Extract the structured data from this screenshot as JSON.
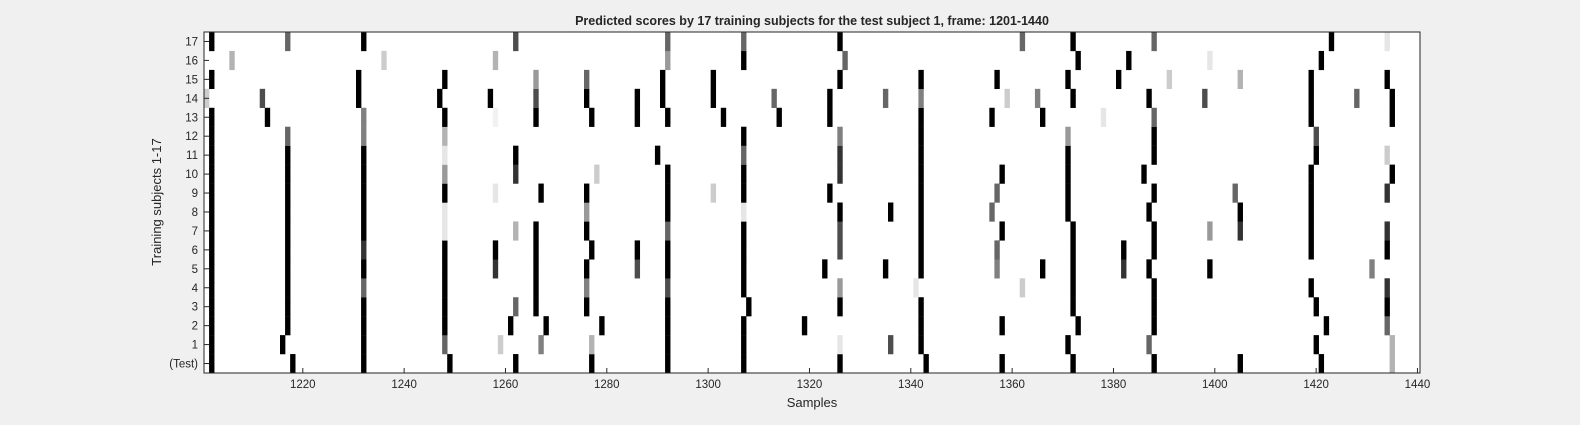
{
  "chart_data": {
    "type": "heatmap",
    "title": "Predicted scores by 17 training subjects for the test subject 1, frame: 1201-1440",
    "xlabel": "Samples",
    "ylabel": "Training subjects 1-17",
    "xlim": [
      1201,
      1440
    ],
    "x_ticks": [
      1220,
      1240,
      1260,
      1280,
      1300,
      1320,
      1340,
      1360,
      1380,
      1400,
      1420,
      1440
    ],
    "rows": [
      "(Test)",
      "1",
      "2",
      "3",
      "4",
      "5",
      "6",
      "7",
      "8",
      "9",
      "10",
      "11",
      "12",
      "13",
      "14",
      "15",
      "16",
      "17"
    ],
    "colormap": "white-to-black",
    "marks": {
      "(Test)": [
        [
          1202,
          1
        ],
        [
          1218,
          1
        ],
        [
          1232,
          1
        ],
        [
          1249,
          1
        ],
        [
          1262,
          1
        ],
        [
          1277,
          1
        ],
        [
          1292,
          1
        ],
        [
          1307,
          1
        ],
        [
          1326,
          1
        ],
        [
          1343,
          1
        ],
        [
          1358,
          1
        ],
        [
          1372,
          1
        ],
        [
          1388,
          1
        ],
        [
          1405,
          1
        ],
        [
          1421,
          1
        ],
        [
          1435,
          0.3
        ]
      ],
      "1": [
        [
          1202,
          1
        ],
        [
          1216,
          1
        ],
        [
          1232,
          1
        ],
        [
          1248,
          0.6
        ],
        [
          1259,
          0.2
        ],
        [
          1267,
          0.5
        ],
        [
          1277,
          0.3
        ],
        [
          1292,
          1
        ],
        [
          1307,
          1
        ],
        [
          1326,
          0.1
        ],
        [
          1336,
          0.7
        ],
        [
          1342,
          1
        ],
        [
          1371,
          1
        ],
        [
          1387,
          0.6
        ],
        [
          1420,
          1
        ],
        [
          1435,
          0.3
        ]
      ],
      "2": [
        [
          1202,
          1
        ],
        [
          1217,
          1
        ],
        [
          1232,
          1
        ],
        [
          1248,
          1
        ],
        [
          1261,
          1
        ],
        [
          1268,
          1
        ],
        [
          1279,
          1
        ],
        [
          1292,
          1
        ],
        [
          1307,
          1
        ],
        [
          1319,
          1
        ],
        [
          1342,
          1
        ],
        [
          1358,
          1
        ],
        [
          1373,
          1
        ],
        [
          1388,
          1
        ],
        [
          1422,
          1
        ],
        [
          1434,
          0.6
        ]
      ],
      "3": [
        [
          1202,
          1
        ],
        [
          1217,
          1
        ],
        [
          1232,
          1
        ],
        [
          1248,
          1
        ],
        [
          1262,
          0.6
        ],
        [
          1266,
          1
        ],
        [
          1276,
          1
        ],
        [
          1292,
          1
        ],
        [
          1308,
          1
        ],
        [
          1326,
          1
        ],
        [
          1342,
          1
        ],
        [
          1372,
          1
        ],
        [
          1388,
          1
        ],
        [
          1420,
          1
        ],
        [
          1434,
          1
        ]
      ],
      "4": [
        [
          1202,
          1
        ],
        [
          1217,
          1
        ],
        [
          1232,
          0.6
        ],
        [
          1248,
          1
        ],
        [
          1266,
          1
        ],
        [
          1276,
          0.5
        ],
        [
          1292,
          0.7
        ],
        [
          1307,
          1
        ],
        [
          1326,
          0.4
        ],
        [
          1341,
          0.1
        ],
        [
          1362,
          0.2
        ],
        [
          1372,
          1
        ],
        [
          1388,
          1
        ],
        [
          1419,
          1
        ],
        [
          1434,
          0.8
        ]
      ],
      "5": [
        [
          1202,
          1
        ],
        [
          1217,
          1
        ],
        [
          1232,
          1
        ],
        [
          1248,
          1
        ],
        [
          1258,
          0.8
        ],
        [
          1266,
          1
        ],
        [
          1276,
          1
        ],
        [
          1286,
          0.7
        ],
        [
          1292,
          1
        ],
        [
          1307,
          1
        ],
        [
          1323,
          1
        ],
        [
          1335,
          1
        ],
        [
          1342,
          1
        ],
        [
          1357,
          0.5
        ],
        [
          1366,
          1
        ],
        [
          1372,
          1
        ],
        [
          1382,
          0.8
        ],
        [
          1387,
          1
        ],
        [
          1399,
          1
        ],
        [
          1431,
          0.5
        ]
      ],
      "6": [
        [
          1202,
          1
        ],
        [
          1217,
          1
        ],
        [
          1232,
          0.8
        ],
        [
          1248,
          1
        ],
        [
          1258,
          1
        ],
        [
          1266,
          1
        ],
        [
          1277,
          1
        ],
        [
          1286,
          1
        ],
        [
          1292,
          1
        ],
        [
          1307,
          1
        ],
        [
          1326,
          0.7
        ],
        [
          1342,
          1
        ],
        [
          1357,
          0.6
        ],
        [
          1372,
          1
        ],
        [
          1382,
          1
        ],
        [
          1388,
          1
        ],
        [
          1419,
          1
        ],
        [
          1434,
          1
        ]
      ],
      "7": [
        [
          1202,
          1
        ],
        [
          1217,
          1
        ],
        [
          1232,
          1
        ],
        [
          1248,
          0.1
        ],
        [
          1262,
          0.3
        ],
        [
          1266,
          1
        ],
        [
          1276,
          1
        ],
        [
          1292,
          0.6
        ],
        [
          1307,
          1
        ],
        [
          1326,
          0.7
        ],
        [
          1342,
          1
        ],
        [
          1358,
          1
        ],
        [
          1372,
          1
        ],
        [
          1388,
          1
        ],
        [
          1399,
          0.4
        ],
        [
          1405,
          0.8
        ],
        [
          1419,
          1
        ],
        [
          1434,
          0.8
        ]
      ],
      "8": [
        [
          1202,
          1
        ],
        [
          1217,
          1
        ],
        [
          1232,
          1
        ],
        [
          1248,
          0.1
        ],
        [
          1276,
          0.4
        ],
        [
          1292,
          1
        ],
        [
          1307,
          0.1
        ],
        [
          1326,
          1
        ],
        [
          1336,
          1
        ],
        [
          1342,
          1
        ],
        [
          1356,
          0.6
        ],
        [
          1371,
          1
        ],
        [
          1387,
          1
        ],
        [
          1405,
          1
        ],
        [
          1419,
          1
        ]
      ],
      "9": [
        [
          1202,
          1
        ],
        [
          1217,
          1
        ],
        [
          1232,
          1
        ],
        [
          1248,
          1
        ],
        [
          1258,
          0.1
        ],
        [
          1267,
          1
        ],
        [
          1276,
          1
        ],
        [
          1292,
          1
        ],
        [
          1301,
          0.2
        ],
        [
          1307,
          1
        ],
        [
          1324,
          1
        ],
        [
          1342,
          1
        ],
        [
          1357,
          0.6
        ],
        [
          1371,
          1
        ],
        [
          1388,
          1
        ],
        [
          1404,
          0.6
        ],
        [
          1419,
          1
        ],
        [
          1434,
          0.8
        ]
      ],
      "10": [
        [
          1202,
          1
        ],
        [
          1217,
          1
        ],
        [
          1232,
          1
        ],
        [
          1248,
          0.4
        ],
        [
          1262,
          0.8
        ],
        [
          1278,
          0.2
        ],
        [
          1292,
          1
        ],
        [
          1307,
          1
        ],
        [
          1326,
          0.8
        ],
        [
          1342,
          1
        ],
        [
          1358,
          1
        ],
        [
          1371,
          1
        ],
        [
          1386,
          1
        ],
        [
          1419,
          1
        ],
        [
          1435,
          1
        ]
      ],
      "11": [
        [
          1202,
          1
        ],
        [
          1217,
          1
        ],
        [
          1232,
          1
        ],
        [
          1248,
          0.1
        ],
        [
          1262,
          1
        ],
        [
          1290,
          1
        ],
        [
          1307,
          0.6
        ],
        [
          1326,
          0.8
        ],
        [
          1342,
          1
        ],
        [
          1371,
          1
        ],
        [
          1388,
          1
        ],
        [
          1420,
          1
        ],
        [
          1434,
          0.2
        ]
      ],
      "12": [
        [
          1202,
          1
        ],
        [
          1217,
          0.6
        ],
        [
          1232,
          0.5
        ],
        [
          1248,
          0.3
        ],
        [
          1307,
          1
        ],
        [
          1326,
          0.5
        ],
        [
          1342,
          1
        ],
        [
          1371,
          0.4
        ],
        [
          1388,
          1
        ],
        [
          1420,
          0.7
        ]
      ],
      "13": [
        [
          1202,
          1
        ],
        [
          1213,
          1
        ],
        [
          1232,
          0.5
        ],
        [
          1248,
          1
        ],
        [
          1258,
          0.05
        ],
        [
          1266,
          1
        ],
        [
          1277,
          1
        ],
        [
          1286,
          1
        ],
        [
          1292,
          1
        ],
        [
          1303,
          1
        ],
        [
          1314,
          1
        ],
        [
          1324,
          1
        ],
        [
          1342,
          1
        ],
        [
          1356,
          1
        ],
        [
          1366,
          1
        ],
        [
          1378,
          0.1
        ],
        [
          1388,
          0.6
        ],
        [
          1419,
          1
        ],
        [
          1435,
          1
        ]
      ],
      "14": [
        [
          1201,
          0.2
        ],
        [
          1212,
          0.7
        ],
        [
          1231,
          1
        ],
        [
          1247,
          1
        ],
        [
          1257,
          1
        ],
        [
          1266,
          0.7
        ],
        [
          1276,
          1
        ],
        [
          1286,
          1
        ],
        [
          1291,
          1
        ],
        [
          1301,
          1
        ],
        [
          1313,
          0.6
        ],
        [
          1324,
          1
        ],
        [
          1335,
          0.6
        ],
        [
          1342,
          0.5
        ],
        [
          1359,
          0.2
        ],
        [
          1365,
          0.5
        ],
        [
          1372,
          1
        ],
        [
          1387,
          1
        ],
        [
          1398,
          0.7
        ],
        [
          1419,
          1
        ],
        [
          1428,
          0.6
        ],
        [
          1435,
          1
        ]
      ],
      "15": [
        [
          1202,
          1
        ],
        [
          1231,
          1
        ],
        [
          1248,
          1
        ],
        [
          1266,
          0.4
        ],
        [
          1276,
          0.6
        ],
        [
          1291,
          1
        ],
        [
          1301,
          1
        ],
        [
          1326,
          1
        ],
        [
          1342,
          1
        ],
        [
          1357,
          1
        ],
        [
          1371,
          1
        ],
        [
          1381,
          1
        ],
        [
          1391,
          0.2
        ],
        [
          1405,
          0.3
        ],
        [
          1419,
          1
        ],
        [
          1434,
          1
        ]
      ],
      "16": [
        [
          1206,
          0.3
        ],
        [
          1236,
          0.2
        ],
        [
          1258,
          0.3
        ],
        [
          1292,
          0.4
        ],
        [
          1307,
          1
        ],
        [
          1327,
          0.6
        ],
        [
          1373,
          1
        ],
        [
          1383,
          1
        ],
        [
          1399,
          0.1
        ],
        [
          1421,
          1
        ]
      ],
      "17": [
        [
          1202,
          1
        ],
        [
          1217,
          0.6
        ],
        [
          1232,
          1
        ],
        [
          1262,
          0.7
        ],
        [
          1292,
          0.6
        ],
        [
          1307,
          0.6
        ],
        [
          1326,
          1
        ],
        [
          1362,
          0.6
        ],
        [
          1372,
          1
        ],
        [
          1388,
          0.6
        ],
        [
          1423,
          1
        ],
        [
          1434,
          0.1
        ]
      ]
    }
  }
}
